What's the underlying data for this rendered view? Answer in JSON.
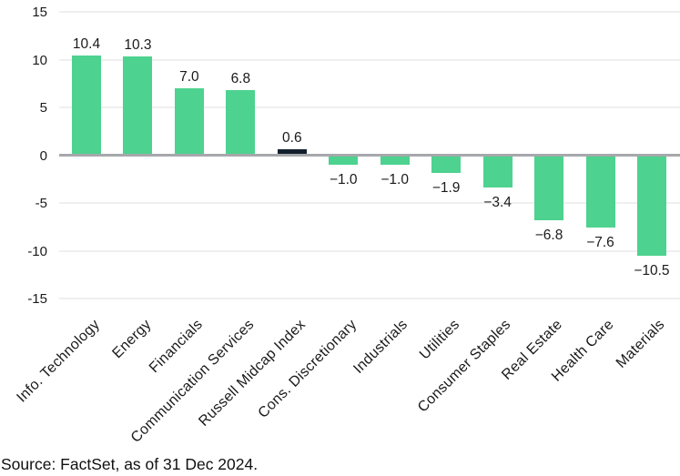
{
  "chart_data": {
    "type": "bar",
    "title": "",
    "xlabel": "",
    "ylabel": "",
    "categories": [
      "Info. Technology",
      "Energy",
      "Financials",
      "Communication Services",
      "Russell Midcap Index",
      "Cons. Discretionary",
      "Industrials",
      "Utilities",
      "Consumer Staples",
      "Real Estate",
      "Health Care",
      "Materials"
    ],
    "values": [
      10.4,
      10.3,
      7.0,
      6.8,
      0.6,
      -1.0,
      -1.0,
      -1.9,
      -3.4,
      -6.8,
      -7.6,
      -10.5
    ],
    "value_labels": [
      "10.4",
      "10.3",
      "7.0",
      "6.8",
      "0.6",
      "−1.0",
      "−1.0",
      "−1.9",
      "−3.4",
      "−6.8",
      "−7.6",
      "−10.5"
    ],
    "highlight_category": "Russell Midcap Index",
    "highlight_index": 4,
    "ylim": [
      -15,
      15
    ],
    "yticks": [
      15,
      10,
      5,
      0,
      -5,
      -10,
      -15
    ],
    "ytick_labels": [
      "15",
      "10",
      "5",
      "0",
      "-5",
      "-10",
      "-15"
    ],
    "grid": true,
    "legend_position": "none",
    "colors": {
      "bar": "#4dd28f",
      "highlight_bar": "#12202d",
      "gridline": "#efefef",
      "zero_line": "#a6a8ab",
      "text": "#1a1a1a"
    }
  },
  "footer": {
    "source": "Source: FactSet, as of 31 Dec 2024."
  }
}
